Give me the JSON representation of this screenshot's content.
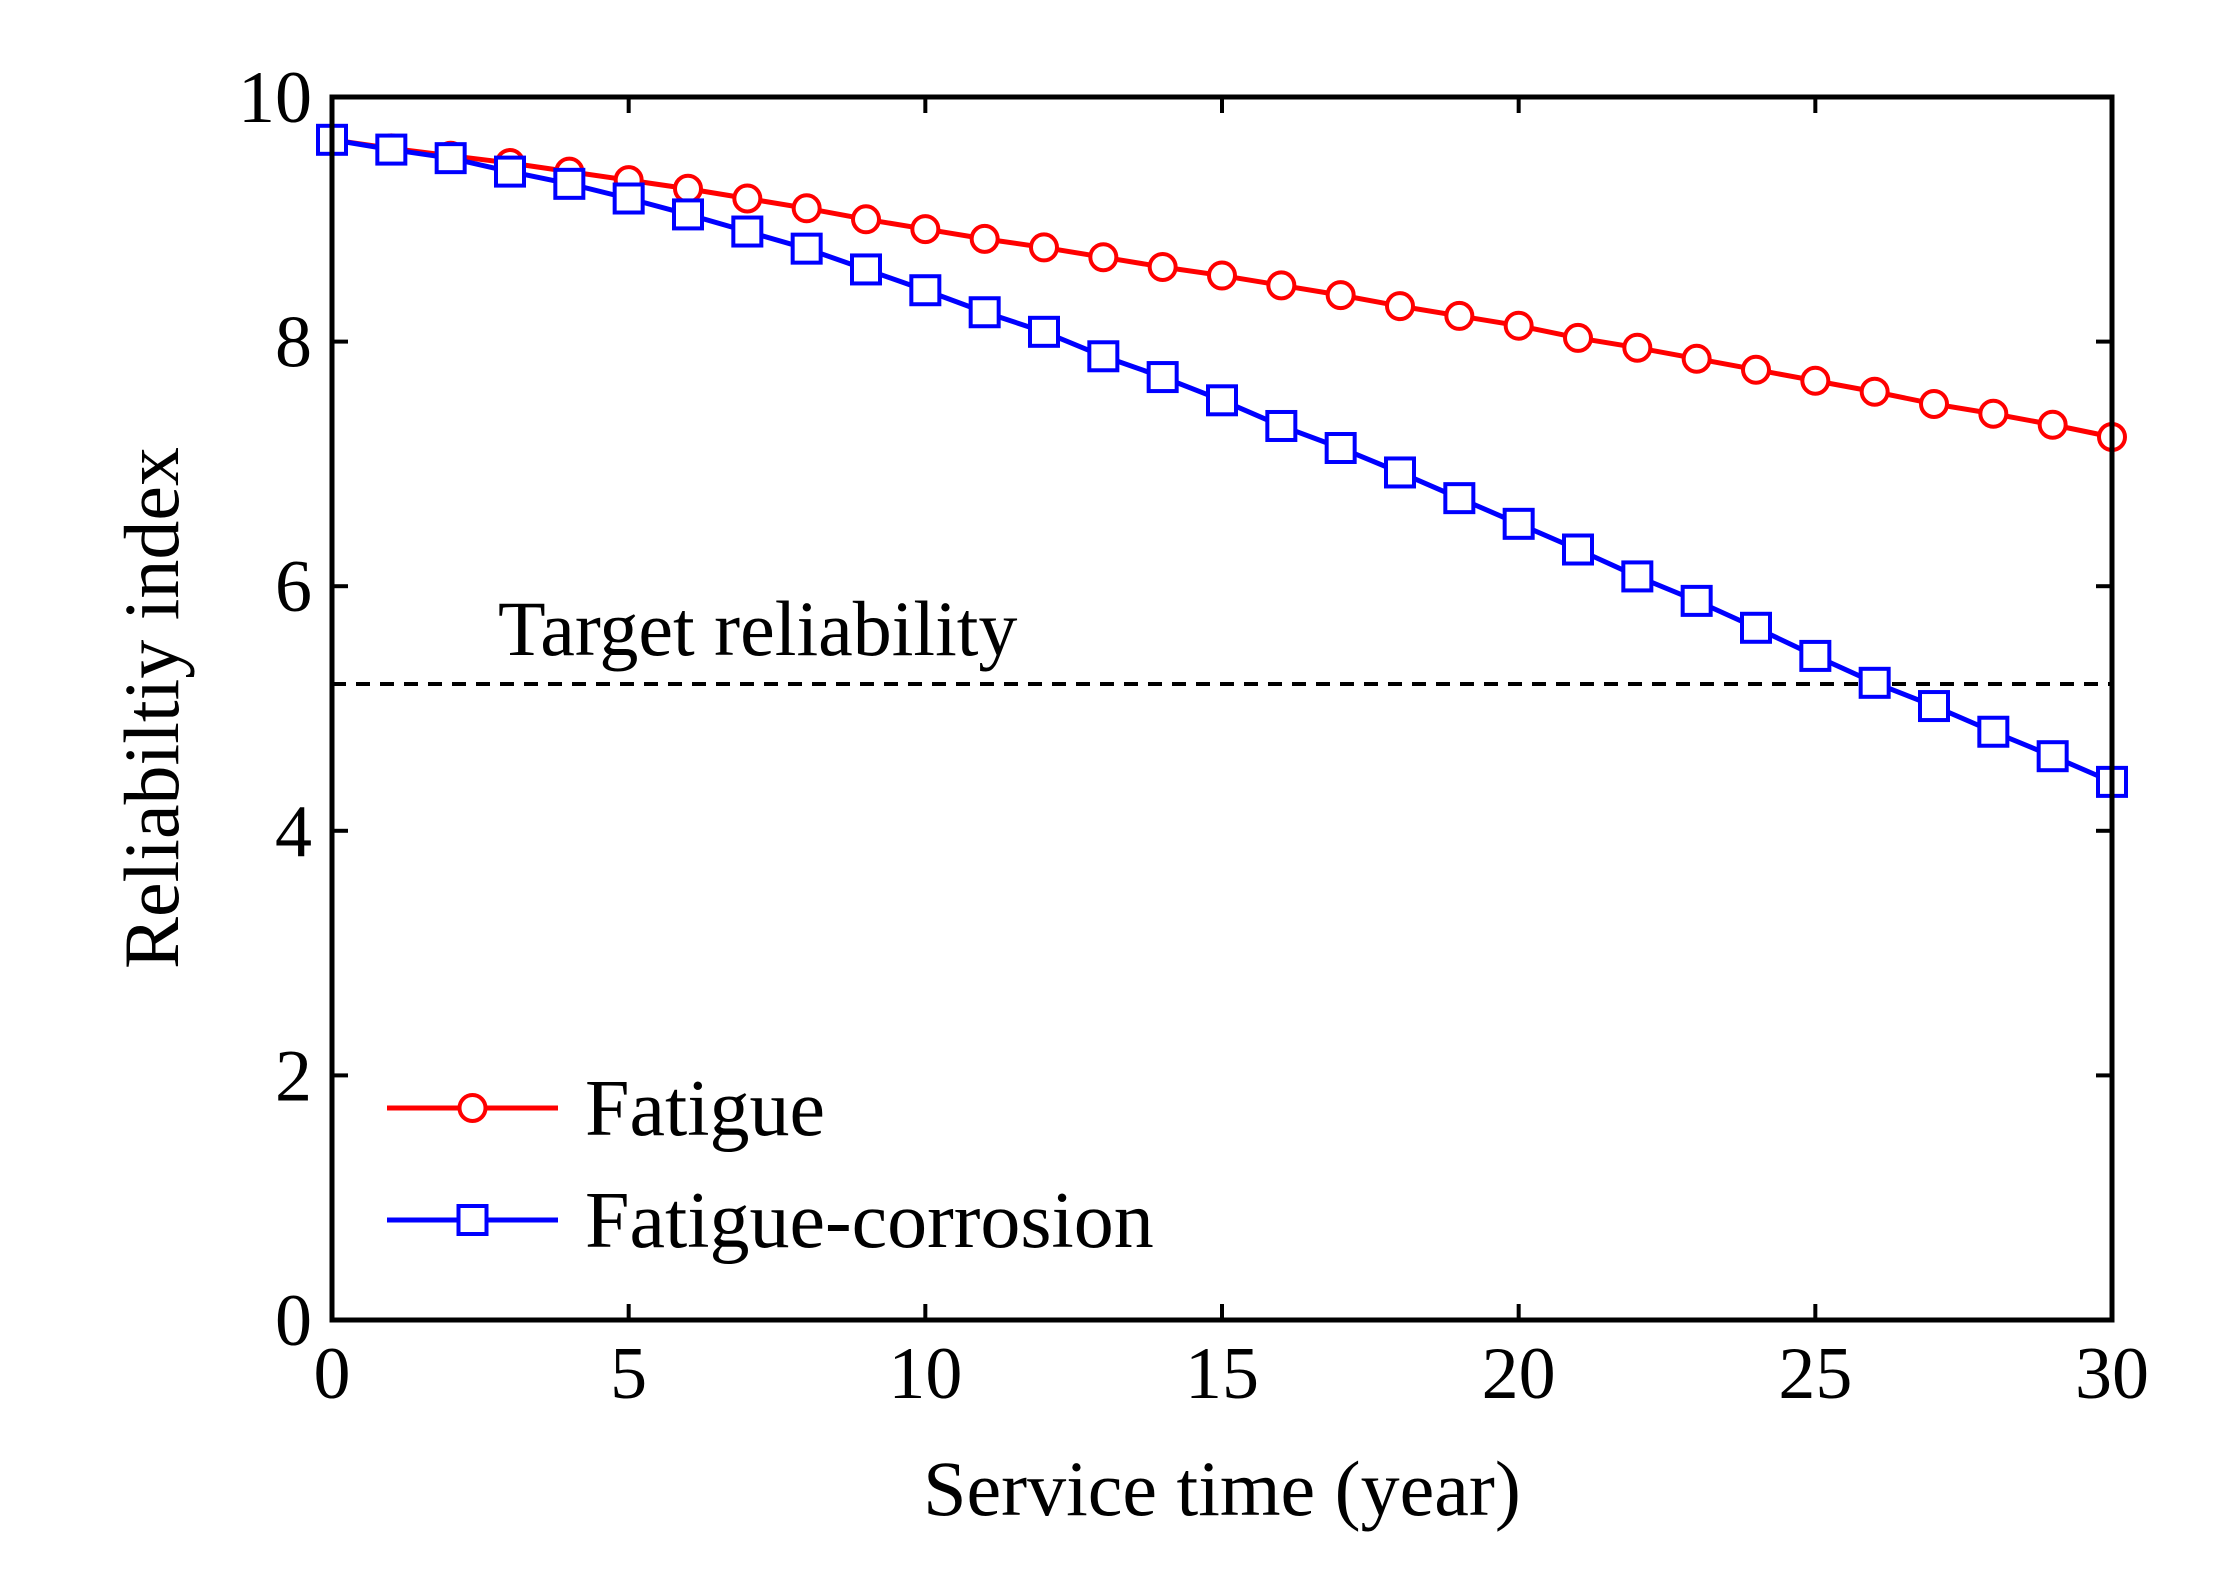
{
  "chart_data": {
    "type": "line",
    "title": "",
    "xlabel": "Service time (year)",
    "ylabel": "Reliabiltiy index",
    "xlim": [
      0,
      30
    ],
    "ylim": [
      0,
      10
    ],
    "xticks": [
      0,
      5,
      10,
      15,
      20,
      25,
      30
    ],
    "yticks": [
      0,
      2,
      4,
      6,
      8,
      10
    ],
    "grid": false,
    "legend_position": "bottom-left",
    "x": [
      0,
      1,
      2,
      3,
      4,
      5,
      6,
      7,
      8,
      9,
      10,
      11,
      12,
      13,
      14,
      15,
      16,
      17,
      18,
      19,
      20,
      21,
      22,
      23,
      24,
      25,
      26,
      27,
      28,
      29,
      30
    ],
    "series": [
      {
        "name": "Fatigue",
        "color": "#ff0000",
        "marker": "circle",
        "values": [
          9.65,
          9.58,
          9.52,
          9.46,
          9.39,
          9.32,
          9.25,
          9.17,
          9.09,
          9.0,
          8.92,
          8.84,
          8.77,
          8.69,
          8.61,
          8.54,
          8.46,
          8.38,
          8.29,
          8.21,
          8.13,
          8.03,
          7.95,
          7.86,
          7.77,
          7.68,
          7.59,
          7.49,
          7.41,
          7.32,
          7.22
        ]
      },
      {
        "name": "Fatigue-corrosion",
        "color": "#0000ff",
        "marker": "square",
        "values": [
          9.65,
          9.57,
          9.5,
          9.39,
          9.29,
          9.17,
          9.04,
          8.9,
          8.76,
          8.59,
          8.42,
          8.24,
          8.08,
          7.88,
          7.71,
          7.52,
          7.31,
          7.13,
          6.93,
          6.72,
          6.51,
          6.3,
          6.08,
          5.88,
          5.66,
          5.43,
          5.21,
          5.02,
          4.81,
          4.61,
          4.4
        ]
      }
    ],
    "reference_line": {
      "label": "Target reliability",
      "y": 5.2,
      "color": "#000000",
      "style": "dashed"
    }
  }
}
